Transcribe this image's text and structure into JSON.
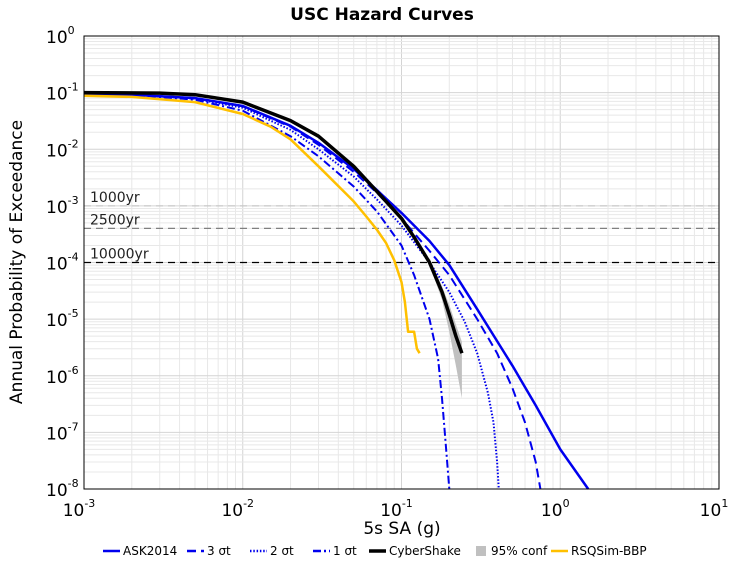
{
  "chart_data": {
    "type": "line",
    "title": "USC Hazard Curves",
    "xlabel": "5s SA (g)",
    "ylabel": "Annual Probability of Exceedance",
    "xscale": "log",
    "yscale": "log",
    "xlim": [
      0.001,
      10
    ],
    "ylim": [
      1e-08,
      1
    ],
    "grid": true,
    "legend_position": "bottom",
    "x_ticks": [
      {
        "base": "10",
        "exp": "-3"
      },
      {
        "base": "10",
        "exp": "-2"
      },
      {
        "base": "10",
        "exp": "-1"
      },
      {
        "base": "10",
        "exp": "0"
      },
      {
        "base": "10",
        "exp": "1"
      }
    ],
    "y_ticks": [
      {
        "base": "10",
        "exp": "0"
      },
      {
        "base": "10",
        "exp": "-1"
      },
      {
        "base": "10",
        "exp": "-2"
      },
      {
        "base": "10",
        "exp": "-3"
      },
      {
        "base": "10",
        "exp": "-4"
      },
      {
        "base": "10",
        "exp": "-5"
      },
      {
        "base": "10",
        "exp": "-6"
      },
      {
        "base": "10",
        "exp": "-7"
      },
      {
        "base": "10",
        "exp": "-8"
      }
    ],
    "reference_lines": [
      {
        "label": "1000yr",
        "y": 0.001,
        "color": "#c8c8c8"
      },
      {
        "label": "2500yr",
        "y": 0.0004,
        "color": "#808080"
      },
      {
        "label": "10000yr",
        "y": 0.0001,
        "color": "#000000"
      }
    ],
    "series": [
      {
        "name": "ASK2014",
        "color": "#0000ee",
        "dash": "solid",
        "x": [
          0.001,
          0.002,
          0.005,
          0.01,
          0.02,
          0.03,
          0.05,
          0.07,
          0.1,
          0.15,
          0.2,
          0.3,
          0.5,
          0.7,
          1.0,
          1.5
        ],
        "y": [
          0.095,
          0.092,
          0.08,
          0.058,
          0.026,
          0.013,
          0.0045,
          0.0019,
          0.00075,
          0.00024,
          9e-05,
          1.5e-05,
          1.5e-06,
          3e-07,
          5e-08,
          1e-08
        ]
      },
      {
        "name": "3 σt",
        "color": "#0000ee",
        "dash": "dashed",
        "x": [
          0.001,
          0.002,
          0.005,
          0.01,
          0.02,
          0.03,
          0.05,
          0.07,
          0.1,
          0.15,
          0.2,
          0.3,
          0.4,
          0.5,
          0.6,
          0.7,
          0.75
        ],
        "y": [
          0.095,
          0.092,
          0.08,
          0.057,
          0.025,
          0.012,
          0.004,
          0.0017,
          0.0006,
          0.00016,
          6e-05,
          1e-05,
          2.5e-06,
          6e-07,
          1.5e-07,
          3e-08,
          1e-08
        ]
      },
      {
        "name": "2 σt",
        "color": "#0000ee",
        "dash": "dotted",
        "x": [
          0.001,
          0.002,
          0.005,
          0.01,
          0.02,
          0.03,
          0.05,
          0.07,
          0.1,
          0.15,
          0.2,
          0.25,
          0.3,
          0.35,
          0.38,
          0.4,
          0.41
        ],
        "y": [
          0.095,
          0.092,
          0.078,
          0.054,
          0.022,
          0.01,
          0.0033,
          0.0013,
          0.00045,
          0.0001,
          3e-05,
          9e-06,
          2.5e-06,
          5e-07,
          1.5e-07,
          3e-08,
          1e-08
        ]
      },
      {
        "name": "1 σt",
        "color": "#0000ee",
        "dash": "dashdot",
        "x": [
          0.001,
          0.002,
          0.005,
          0.01,
          0.02,
          0.03,
          0.05,
          0.07,
          0.1,
          0.12,
          0.15,
          0.17,
          0.18,
          0.19,
          0.2
        ],
        "y": [
          0.095,
          0.091,
          0.075,
          0.048,
          0.017,
          0.0075,
          0.0022,
          0.0008,
          0.0002,
          6e-05,
          1e-05,
          2e-06,
          4e-07,
          6e-08,
          1e-08
        ]
      },
      {
        "name": "CyberShake",
        "color": "#000000",
        "dash": "solid",
        "x": [
          0.001,
          0.003,
          0.005,
          0.01,
          0.02,
          0.03,
          0.05,
          0.07,
          0.1,
          0.12,
          0.15,
          0.18,
          0.2,
          0.22,
          0.24
        ],
        "y": [
          0.1,
          0.098,
          0.092,
          0.068,
          0.032,
          0.017,
          0.005,
          0.0018,
          0.0006,
          0.00028,
          0.0001,
          3e-05,
          1.2e-05,
          5e-06,
          2.5e-06
        ]
      },
      {
        "name": "RSQSim-BBP",
        "color": "#ffc000",
        "dash": "solid",
        "x": [
          0.001,
          0.002,
          0.005,
          0.01,
          0.015,
          0.02,
          0.03,
          0.05,
          0.06,
          0.07,
          0.08,
          0.09,
          0.1,
          0.105,
          0.11,
          0.12,
          0.125,
          0.13
        ],
        "y": [
          0.088,
          0.084,
          0.068,
          0.042,
          0.025,
          0.015,
          0.005,
          0.0012,
          0.00065,
          0.00038,
          0.00022,
          0.00011,
          4.5e-05,
          2e-05,
          6e-06,
          6e-06,
          3e-06,
          2.5e-06
        ]
      }
    ],
    "confidence_band": {
      "name": "95% conf",
      "color": "#c0c0c0",
      "x": [
        0.15,
        0.18,
        0.2,
        0.22,
        0.24
      ],
      "y_low": [
        9e-05,
        2.2e-05,
        6e-06,
        1.5e-06,
        4e-07
      ],
      "y_high": [
        0.00012,
        3.8e-05,
        1.8e-05,
        8e-06,
        4e-06
      ]
    },
    "legend": [
      {
        "label": "ASK2014",
        "kind": "line",
        "color": "#0000ee",
        "dash": "solid"
      },
      {
        "label": "3 σt",
        "kind": "line",
        "color": "#0000ee",
        "dash": "dashed"
      },
      {
        "label": "2 σt",
        "kind": "line",
        "color": "#0000ee",
        "dash": "dotted"
      },
      {
        "label": "1 σt",
        "kind": "line",
        "color": "#0000ee",
        "dash": "dashdot"
      },
      {
        "label": "CyberShake",
        "kind": "line",
        "color": "#000000",
        "dash": "solid"
      },
      {
        "label": "95% conf",
        "kind": "box",
        "color": "#c0c0c0",
        "dash": "solid"
      },
      {
        "label": "RSQSim-BBP",
        "kind": "line",
        "color": "#ffc000",
        "dash": "solid"
      }
    ]
  }
}
